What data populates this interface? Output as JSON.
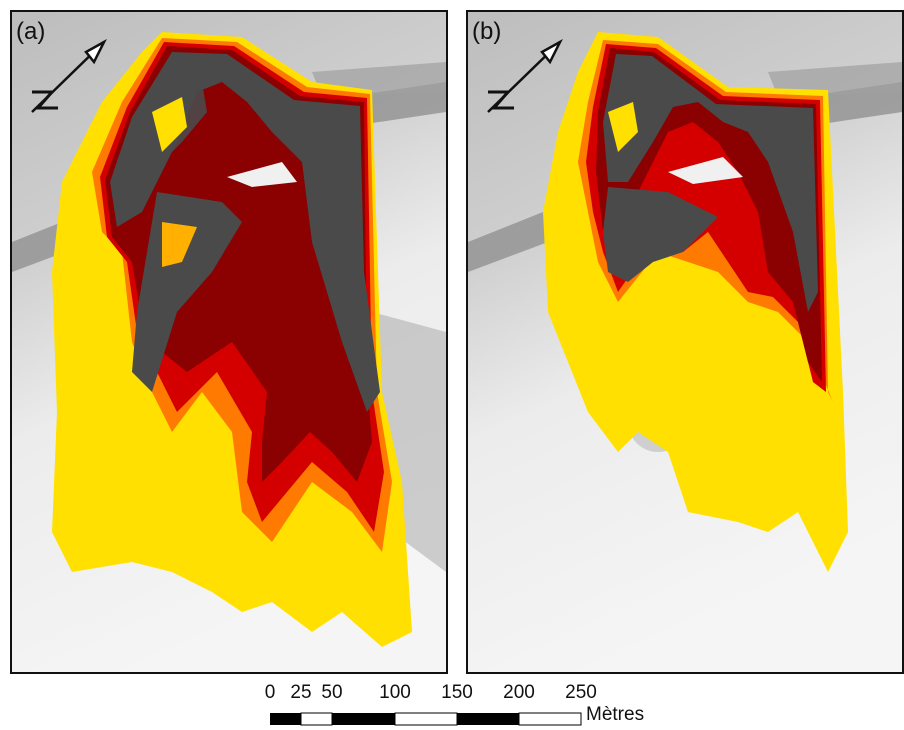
{
  "panels": [
    {
      "label": "(a)"
    },
    {
      "label": "(b)"
    }
  ],
  "scale": {
    "ticks": [
      "0",
      "25",
      "50",
      "100",
      "150",
      "200",
      "250"
    ],
    "values": [
      0,
      25,
      50,
      100,
      150,
      200,
      250
    ],
    "unit": "Mètres"
  },
  "colors": {
    "high": "#4a4a4a",
    "dark_red": "#8b0000",
    "red": "#d40000",
    "orange": "#ff7a00",
    "yellow": "#ffe000",
    "hillshade_light": "#f2f2f2",
    "hillshade_dark": "#9a9a9a"
  }
}
